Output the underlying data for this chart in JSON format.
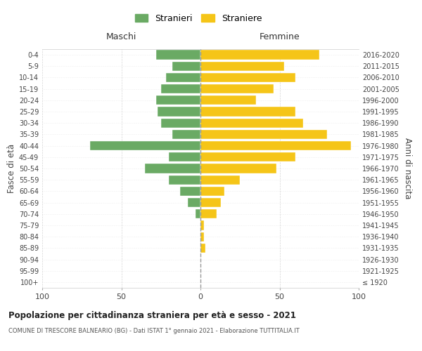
{
  "age_groups": [
    "100+",
    "95-99",
    "90-94",
    "85-89",
    "80-84",
    "75-79",
    "70-74",
    "65-69",
    "60-64",
    "55-59",
    "50-54",
    "45-49",
    "40-44",
    "35-39",
    "30-34",
    "25-29",
    "20-24",
    "15-19",
    "10-14",
    "5-9",
    "0-4"
  ],
  "birth_years": [
    "≤ 1920",
    "1921-1925",
    "1926-1930",
    "1931-1935",
    "1936-1940",
    "1941-1945",
    "1946-1950",
    "1951-1955",
    "1956-1960",
    "1961-1965",
    "1966-1970",
    "1971-1975",
    "1976-1980",
    "1981-1985",
    "1986-1990",
    "1991-1995",
    "1996-2000",
    "2001-2005",
    "2006-2010",
    "2011-2015",
    "2016-2020"
  ],
  "males": [
    0,
    0,
    0,
    0,
    0,
    0,
    3,
    8,
    13,
    20,
    35,
    20,
    70,
    18,
    25,
    27,
    28,
    25,
    22,
    18,
    28
  ],
  "females": [
    0,
    0,
    0,
    3,
    2,
    2,
    10,
    13,
    15,
    25,
    48,
    60,
    95,
    80,
    65,
    60,
    35,
    46,
    60,
    53,
    75
  ],
  "male_color": "#6aaa64",
  "female_color": "#f5c518",
  "background_color": "#ffffff",
  "grid_color": "#cccccc",
  "title": "Popolazione per cittadinanza straniera per età e sesso - 2021",
  "subtitle": "COMUNE DI TRESCORE BALNEARIO (BG) - Dati ISTAT 1° gennaio 2021 - Elaborazione TUTTITALIA.IT",
  "xlabel_left": "Maschi",
  "xlabel_right": "Femmine",
  "ylabel_left": "Fasce di età",
  "ylabel_right": "Anni di nascita",
  "legend_male": "Stranieri",
  "legend_female": "Straniere",
  "xlim": 100,
  "center_line_color": "#999999"
}
